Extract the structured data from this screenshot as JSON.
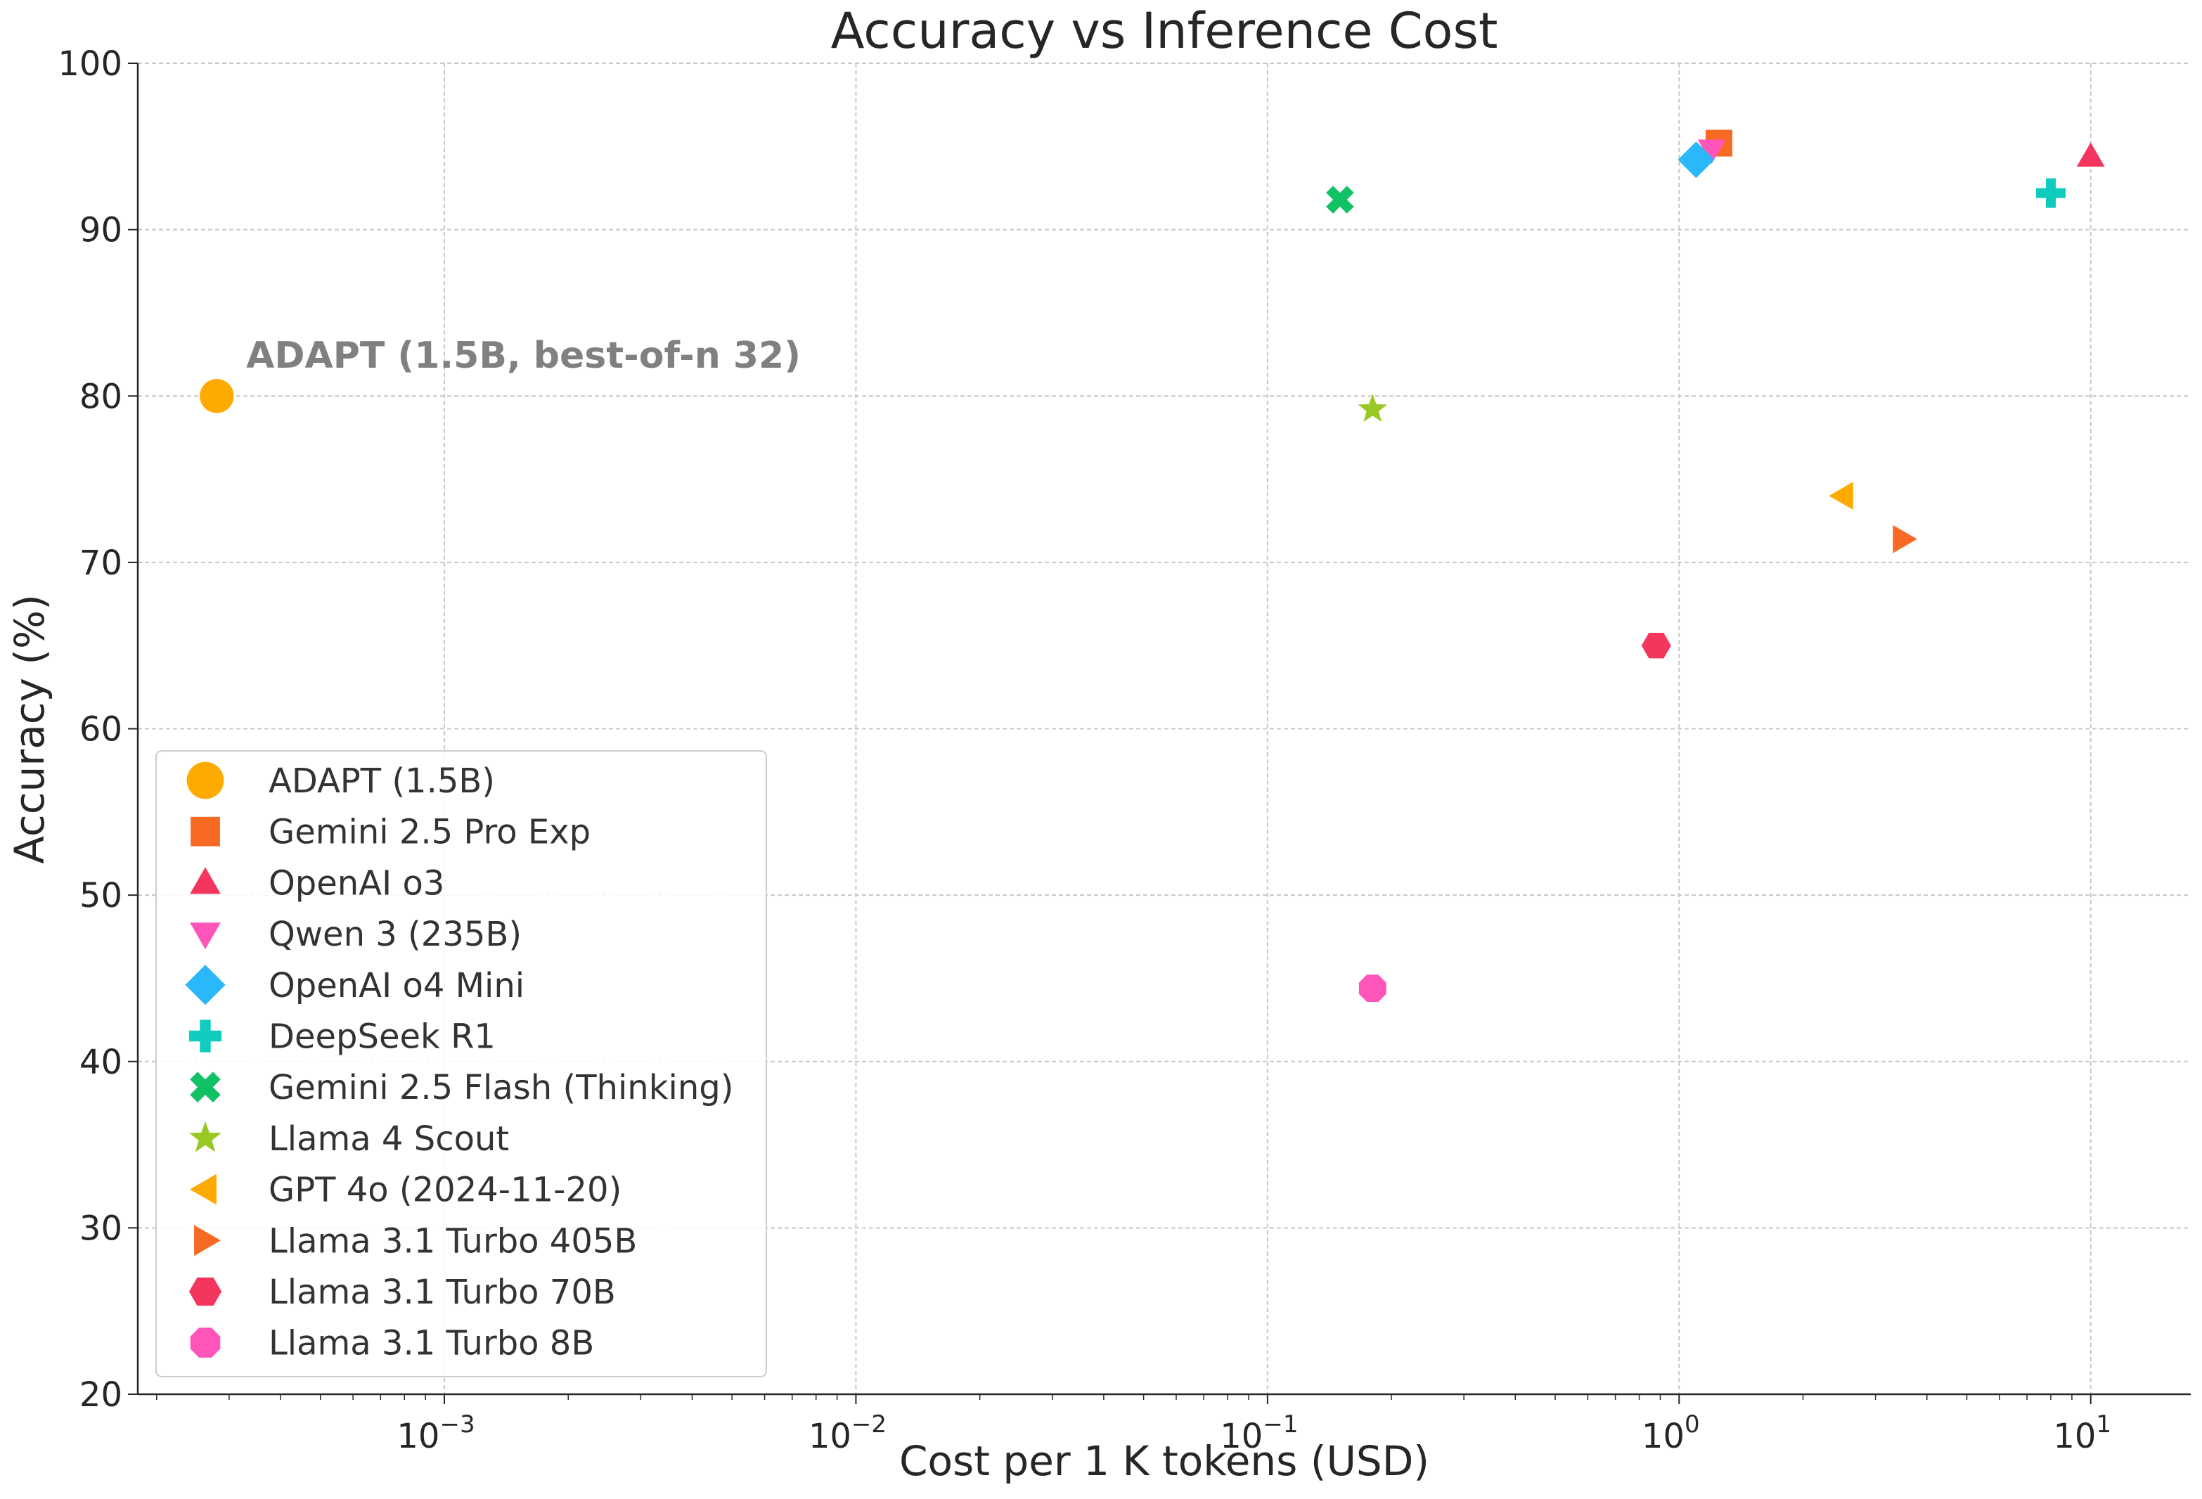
{
  "chart_data": {
    "type": "scatter",
    "title": "Accuracy vs Inference Cost",
    "xlabel": "Cost per 1 K tokens (USD)",
    "ylabel": "Accuracy (%)",
    "xscale": "log",
    "xlim": [
      0.00018,
      17.5
    ],
    "ylim": [
      20,
      100
    ],
    "yticks": [
      20,
      30,
      40,
      50,
      60,
      70,
      80,
      90,
      100
    ],
    "xticks": [
      {
        "value": 0.001,
        "base": "10",
        "exp": "−3"
      },
      {
        "value": 0.01,
        "base": "10",
        "exp": "−2"
      },
      {
        "value": 0.1,
        "base": "10",
        "exp": "−1"
      },
      {
        "value": 1,
        "base": "10",
        "exp": "0"
      },
      {
        "value": 10,
        "base": "10",
        "exp": "1"
      }
    ],
    "grid": true,
    "legend_position": "lower-left",
    "annotation": {
      "text": "ADAPT (1.5B, best-of-n 32)",
      "x": 0.00033,
      "y": 81.7,
      "color": "#808080"
    },
    "series": [
      {
        "name": "ADAPT (1.5B)",
        "marker": "circle",
        "color": "#FFAA00",
        "x": 0.00028,
        "y": 80.0
      },
      {
        "name": "Gemini 2.5 Pro Exp",
        "marker": "square",
        "color": "#F86A24",
        "x": 1.25,
        "y": 95.2
      },
      {
        "name": "OpenAI o3",
        "marker": "triangle-up",
        "color": "#F4365F",
        "x": 10.0,
        "y": 94.4
      },
      {
        "name": "Qwen 3 (235B)",
        "marker": "triangle-down",
        "color": "#FF55BB",
        "x": 1.2,
        "y": 94.8
      },
      {
        "name": "OpenAI o4 Mini",
        "marker": "diamond",
        "color": "#2AB8FA",
        "x": 1.1,
        "y": 94.2
      },
      {
        "name": "DeepSeek R1",
        "marker": "plus",
        "color": "#10CCBE",
        "x": 8.0,
        "y": 92.2
      },
      {
        "name": "Gemini 2.5 Flash (Thinking)",
        "marker": "x",
        "color": "#12C065",
        "x": 0.15,
        "y": 91.8
      },
      {
        "name": "Llama 4 Scout",
        "marker": "star",
        "color": "#9AC823",
        "x": 0.18,
        "y": 79.2
      },
      {
        "name": "GPT 4o (2024-11-20)",
        "marker": "triangle-left",
        "color": "#FFAA00",
        "x": 2.5,
        "y": 74.0
      },
      {
        "name": "Llama 3.1 Turbo 405B",
        "marker": "triangle-right",
        "color": "#F86A24",
        "x": 3.5,
        "y": 71.4
      },
      {
        "name": "Llama 3.1 Turbo 70B",
        "marker": "hexagon",
        "color": "#F4365F",
        "x": 0.88,
        "y": 65.0
      },
      {
        "name": "Llama 3.1 Turbo 8B",
        "marker": "octagon",
        "color": "#FF55BB",
        "x": 0.18,
        "y": 44.4
      }
    ]
  }
}
